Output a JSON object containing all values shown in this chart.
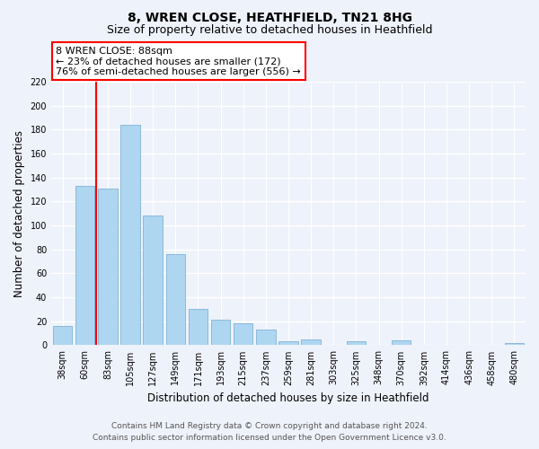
{
  "title": "8, WREN CLOSE, HEATHFIELD, TN21 8HG",
  "subtitle": "Size of property relative to detached houses in Heathfield",
  "xlabel": "Distribution of detached houses by size in Heathfield",
  "ylabel": "Number of detached properties",
  "bar_labels": [
    "38sqm",
    "60sqm",
    "83sqm",
    "105sqm",
    "127sqm",
    "149sqm",
    "171sqm",
    "193sqm",
    "215sqm",
    "237sqm",
    "259sqm",
    "281sqm",
    "303sqm",
    "325sqm",
    "348sqm",
    "370sqm",
    "392sqm",
    "414sqm",
    "436sqm",
    "458sqm",
    "480sqm"
  ],
  "bar_values": [
    16,
    133,
    131,
    184,
    108,
    76,
    30,
    21,
    18,
    13,
    3,
    5,
    0,
    3,
    0,
    4,
    0,
    0,
    0,
    0,
    2
  ],
  "bar_color": "#aed6f1",
  "bar_edge_color": "#7fb3d6",
  "ylim": [
    0,
    220
  ],
  "yticks": [
    0,
    20,
    40,
    60,
    80,
    100,
    120,
    140,
    160,
    180,
    200,
    220
  ],
  "annotation_line1": "8 WREN CLOSE: 88sqm",
  "annotation_line2": "← 23% of detached houses are smaller (172)",
  "annotation_line3": "76% of semi-detached houses are larger (556) →",
  "footer_line1": "Contains HM Land Registry data © Crown copyright and database right 2024.",
  "footer_line2": "Contains public sector information licensed under the Open Government Licence v3.0.",
  "bg_color": "#eef2fb",
  "grid_color": "#ffffff",
  "title_fontsize": 10,
  "subtitle_fontsize": 9,
  "axis_label_fontsize": 8.5,
  "tick_fontsize": 7,
  "annotation_fontsize": 8,
  "footer_fontsize": 6.5
}
